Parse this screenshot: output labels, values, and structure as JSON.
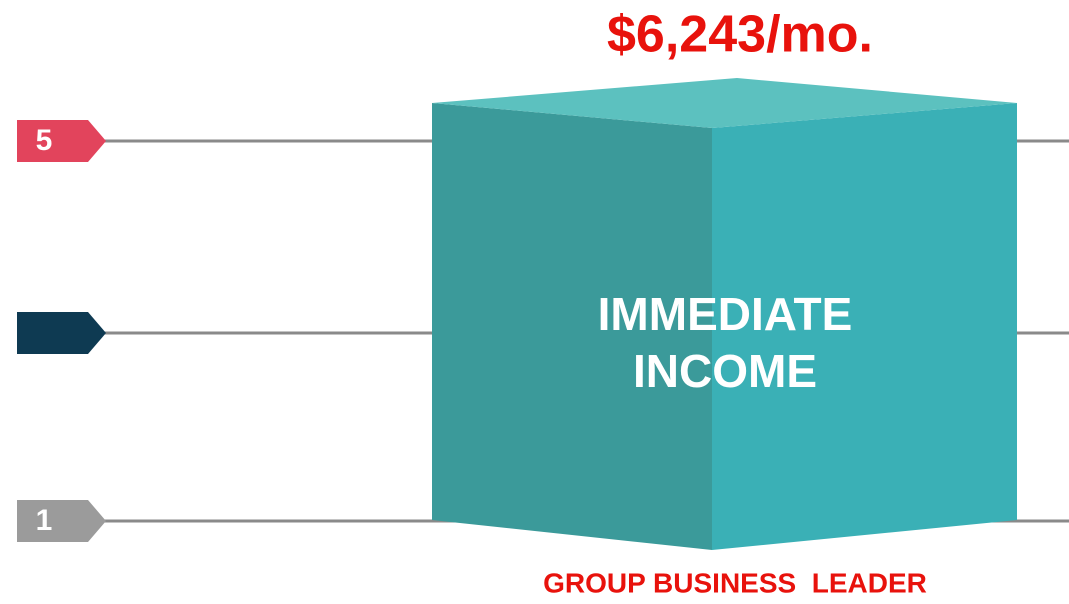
{
  "price": "$6,243/mo.",
  "box": {
    "lines": [
      "IMMEDIATE",
      "INCOME"
    ]
  },
  "levels": {
    "top": "5",
    "bottom": "1"
  },
  "footer": "GROUP BUSINESS  LEADER"
}
